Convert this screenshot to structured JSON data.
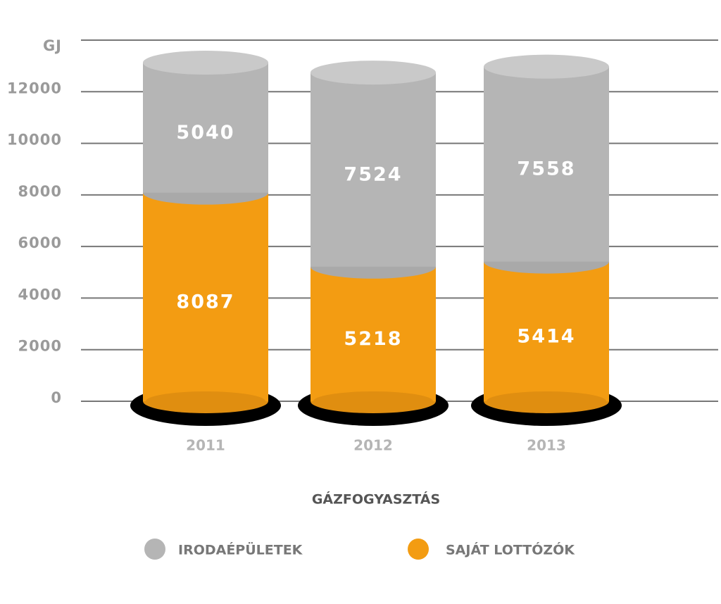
{
  "chart_data": {
    "type": "stacked-bar",
    "title": "GÁZFOGYASZTÁS",
    "y_label": "GJ",
    "categories": [
      "2011",
      "2012",
      "2013"
    ],
    "series": [
      {
        "name": "SAJÁT LOTTÓZÓK",
        "color": "#f39c12",
        "values": [
          8087,
          5218,
          5414
        ]
      },
      {
        "name": "IRODAÉPÜLETEK",
        "color": "#b5b5b5",
        "values": [
          5040,
          7524,
          7558
        ]
      }
    ],
    "ylim": [
      0,
      14000
    ],
    "yticks": [
      0,
      2000,
      4000,
      6000,
      8000,
      10000,
      12000
    ],
    "grid": true
  }
}
